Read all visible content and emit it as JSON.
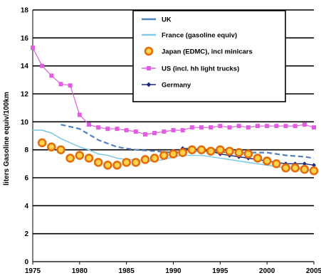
{
  "chart_data": {
    "type": "line",
    "title": "",
    "xlabel": "",
    "ylabel": "liters Gasoline equiv/100km",
    "xlim": [
      1975,
      2005
    ],
    "ylim": [
      0,
      18
    ],
    "xticks": [
      "1975",
      "1980",
      "1985",
      "1990",
      "1995",
      "2000",
      "2005"
    ],
    "yticks": [
      "0",
      "2",
      "4",
      "6",
      "8",
      "10",
      "12",
      "14",
      "16",
      "18"
    ],
    "grid": "horizontal",
    "legend_position": "top-center",
    "series": [
      {
        "name": "UK",
        "color": "#4f81bd",
        "style": "dashed",
        "x": [
          1978,
          1980,
          1982,
          1984,
          1986,
          1988,
          1990,
          1992,
          1994,
          1996,
          1998,
          2000,
          2002,
          2004,
          2005
        ],
        "y": [
          9.8,
          9.5,
          8.7,
          8.2,
          8.0,
          7.9,
          7.8,
          7.9,
          7.9,
          7.8,
          7.8,
          7.8,
          7.6,
          7.5,
          7.4
        ]
      },
      {
        "name": "France (gasoline equiv)",
        "color": "#7fcbe8",
        "style": "solid",
        "x": [
          1975,
          1976,
          1977,
          1978,
          1979,
          1980,
          1981,
          1982,
          1983,
          1984,
          1985,
          1986,
          1987,
          1988,
          1989,
          1990,
          1991,
          1992,
          1993,
          1994,
          1995,
          1996,
          1997,
          1998,
          1999,
          2000,
          2001,
          2002,
          2003,
          2004,
          2005
        ],
        "y": [
          9.4,
          9.4,
          9.2,
          8.8,
          8.5,
          8.2,
          8.0,
          7.7,
          7.6,
          7.4,
          7.3,
          7.3,
          7.2,
          7.2,
          7.3,
          7.5,
          7.6,
          7.6,
          7.6,
          7.5,
          7.4,
          7.3,
          7.2,
          7.1,
          7.0,
          6.9,
          6.8,
          6.7,
          6.6,
          6.6,
          6.5
        ]
      },
      {
        "name": "Japan (EDMC), incl minicars",
        "color": "#e46c0a",
        "style": "marker",
        "x": [
          1976,
          1977,
          1978,
          1979,
          1980,
          1981,
          1982,
          1983,
          1984,
          1985,
          1986,
          1987,
          1988,
          1989,
          1990,
          1991,
          1992,
          1993,
          1994,
          1995,
          1996,
          1997,
          1998,
          1999,
          2000,
          2001,
          2002,
          2003,
          2004,
          2005
        ],
        "y": [
          8.5,
          8.2,
          8.0,
          7.4,
          7.6,
          7.4,
          7.1,
          6.9,
          6.9,
          7.1,
          7.1,
          7.3,
          7.4,
          7.6,
          7.7,
          7.8,
          8.0,
          8.0,
          7.9,
          8.0,
          7.9,
          7.8,
          7.7,
          7.4,
          7.2,
          7.0,
          6.7,
          6.7,
          6.6,
          6.5
        ]
      },
      {
        "name": "US (incl. hh light trucks)",
        "color": "#e05ce0",
        "style": "line-marker",
        "x": [
          1975,
          1976,
          1977,
          1978,
          1979,
          1980,
          1981,
          1982,
          1983,
          1984,
          1985,
          1986,
          1987,
          1988,
          1989,
          1990,
          1991,
          1992,
          1993,
          1994,
          1995,
          1996,
          1997,
          1998,
          1999,
          2000,
          2001,
          2002,
          2003,
          2004,
          2005
        ],
        "y": [
          15.3,
          14.0,
          13.3,
          12.7,
          12.6,
          10.5,
          9.8,
          9.6,
          9.5,
          9.5,
          9.4,
          9.3,
          9.1,
          9.2,
          9.3,
          9.4,
          9.4,
          9.6,
          9.6,
          9.6,
          9.7,
          9.6,
          9.7,
          9.6,
          9.7,
          9.7,
          9.7,
          9.7,
          9.7,
          9.8,
          9.6
        ]
      },
      {
        "name": "Germany",
        "color": "#1f2a7a",
        "style": "line-marker",
        "x": [
          1991,
          1992,
          1993,
          1994,
          1995,
          1996,
          1997,
          1998,
          1999,
          2000,
          2001,
          2002,
          2003,
          2004,
          2005
        ],
        "y": [
          8.1,
          8.1,
          8.0,
          7.9,
          7.7,
          7.6,
          7.5,
          7.4,
          7.3,
          7.2,
          7.1,
          7.0,
          7.0,
          7.0,
          6.9
        ]
      }
    ]
  }
}
